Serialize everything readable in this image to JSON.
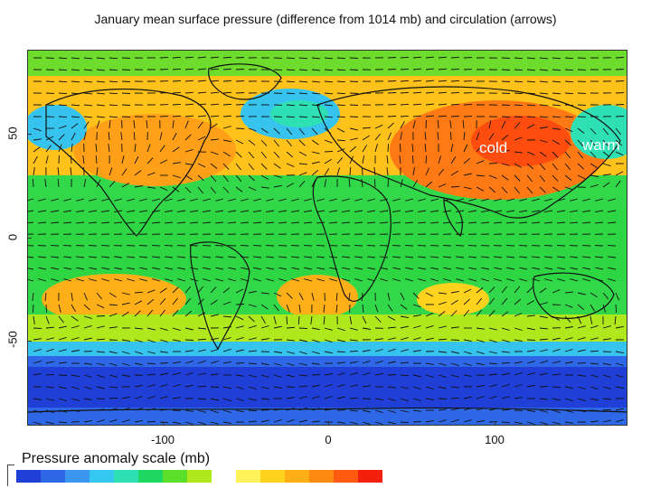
{
  "title": "January mean surface pressure (difference from 1014 mb) and circulation (arrows)",
  "y_ticks": [
    "50",
    "0",
    "-50"
  ],
  "x_ticks": [
    "-100",
    "0",
    "100"
  ],
  "labels": {
    "cold": "cold",
    "warm": "warm"
  },
  "scale": {
    "title": "Pressure anomaly scale (mb)",
    "colors": [
      "#1f3fd6",
      "#2f68e6",
      "#3a96ee",
      "#34c8f0",
      "#2fe0b4",
      "#1ed760",
      "#5cdf2a",
      "#b0e81e",
      "#ffffff",
      "#fff15a",
      "#ffd21e",
      "#ffae16",
      "#ff8a12",
      "#ff5a10",
      "#f5200c"
    ]
  },
  "map_colors": {
    "ocean_green": "#32d84a",
    "high_orange": "#ffb018",
    "high_red": "#ff6a12",
    "low_blue": "#1f45dc",
    "low_cyan": "#36c4ef",
    "yellow": "#fff050",
    "arrows": "#111111"
  }
}
